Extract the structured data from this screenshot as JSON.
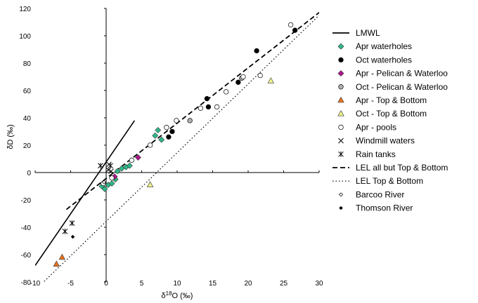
{
  "chart_data": {
    "type": "scatter",
    "xlabel": "δ18O (‰)",
    "ylabel": "δD (‰)",
    "xlim": [
      -10,
      30
    ],
    "ylim": [
      -80,
      120
    ],
    "xticks": [
      "-10",
      "-5",
      "0",
      "5",
      "10",
      "15",
      "20",
      "25",
      "30"
    ],
    "yticks": [
      "-80",
      "-60",
      "-40",
      "-20",
      "0",
      "20",
      "40",
      "60",
      "80",
      "100",
      "120"
    ],
    "grid": false,
    "legend_position": "right",
    "series": [
      {
        "name": "LMWL",
        "kind": "line",
        "style": "solid",
        "color": "#000000",
        "points": [
          [
            -10,
            -68
          ],
          [
            4,
            38
          ]
        ]
      },
      {
        "name": "Apr waterholes",
        "kind": "scatter",
        "marker": "diamond",
        "color": "#2eb88a",
        "points": [
          [
            -0.6,
            -10
          ],
          [
            -0.2,
            -12
          ],
          [
            0.3,
            -9
          ],
          [
            0.8,
            -8
          ],
          [
            1.3,
            -5
          ],
          [
            1.6,
            1
          ],
          [
            2.2,
            3
          ],
          [
            2.8,
            4
          ],
          [
            3.3,
            5
          ],
          [
            7.3,
            31
          ],
          [
            6.9,
            27
          ],
          [
            7.8,
            24
          ]
        ]
      },
      {
        "name": "Oct waterholes",
        "kind": "scatter",
        "marker": "circle",
        "color": "#000000",
        "points": [
          [
            8.8,
            26
          ],
          [
            9.3,
            30
          ],
          [
            14.2,
            54
          ],
          [
            14.4,
            48
          ],
          [
            18.6,
            66
          ],
          [
            21.2,
            89
          ],
          [
            26.6,
            104
          ]
        ]
      },
      {
        "name": "Apr - Pelican & Waterloo",
        "kind": "scatter",
        "marker": "diamond",
        "color": "#b0158c",
        "points": [
          [
            1.2,
            -3
          ],
          [
            4.5,
            11
          ]
        ]
      },
      {
        "name": "Oct - Pelican & Waterloo",
        "kind": "scatter",
        "marker": "circle",
        "color": "#b3b3b3",
        "points": [
          [
            11.8,
            38
          ],
          [
            19.1,
            69
          ]
        ]
      },
      {
        "name": "Apr - Top & Bottom",
        "kind": "scatter",
        "marker": "triangle",
        "color": "#e8711c",
        "points": [
          [
            -7,
            -67
          ],
          [
            -6.2,
            -62
          ]
        ]
      },
      {
        "name": "Oct - Top & Bottom",
        "kind": "scatter",
        "marker": "triangle",
        "color": "#eef28a",
        "points": [
          [
            6.2,
            -9
          ],
          [
            23.2,
            67
          ]
        ]
      },
      {
        "name": "Apr - pools",
        "kind": "scatter",
        "marker": "circle",
        "color": "#ffffff",
        "points": [
          [
            -0.4,
            -8
          ],
          [
            0.8,
            -4
          ],
          [
            3.6,
            9
          ],
          [
            6.2,
            20
          ],
          [
            8.5,
            33
          ],
          [
            9.9,
            38
          ],
          [
            13.3,
            47
          ],
          [
            15.6,
            48
          ],
          [
            16.9,
            59
          ],
          [
            19.3,
            70
          ],
          [
            21.7,
            71
          ],
          [
            26,
            108
          ]
        ]
      },
      {
        "name": "Windmill waters",
        "kind": "scatter",
        "marker": "x",
        "color": "#000000",
        "points": [
          [
            0.3,
            2
          ],
          [
            0.4,
            6
          ],
          [
            0.7,
            1
          ]
        ]
      },
      {
        "name": "Rain tanks",
        "kind": "scatter",
        "marker": "asterisk",
        "color": "#000000",
        "points": [
          [
            -0.8,
            5
          ],
          [
            -5.8,
            -43
          ],
          [
            -4.8,
            -37
          ],
          [
            0.6,
            5
          ]
        ]
      },
      {
        "name": "LEL all but Top & Bottom",
        "kind": "line",
        "style": "dashed",
        "color": "#000000",
        "points": [
          [
            -5.6,
            -27
          ],
          [
            30,
            117
          ]
        ]
      },
      {
        "name": "LEL Top & Bottom",
        "kind": "line",
        "style": "dotted",
        "color": "#000000",
        "points": [
          [
            -10,
            -86
          ],
          [
            30,
            115
          ]
        ]
      },
      {
        "name": "Barcoo River",
        "kind": "scatter",
        "marker": "diamond-small-open",
        "color": "#ffffff",
        "points": [
          [
            -0.3,
            -7
          ]
        ]
      },
      {
        "name": "Thomson River",
        "kind": "scatter",
        "marker": "diamond-small",
        "color": "#000000",
        "points": [
          [
            -4.7,
            -47
          ]
        ]
      }
    ]
  }
}
